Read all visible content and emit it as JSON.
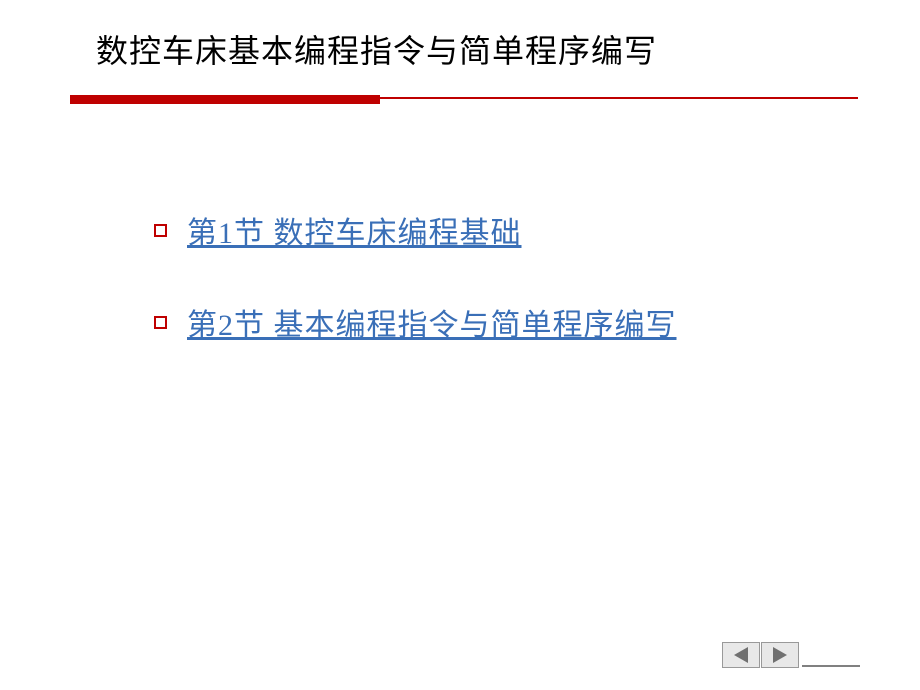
{
  "slide": {
    "title": "数控车床基本编程指令与简单程序编写",
    "title_color": "#000000",
    "title_fontsize": 32,
    "underline": {
      "red_bar_color": "#bf0000",
      "red_bar_width": 310,
      "red_bar_height": 9,
      "thin_line_width": 480,
      "thin_line_height": 2
    },
    "items": [
      {
        "text": "第1节 数控车床编程基础",
        "link_color": "#3a6fb7",
        "bullet_color": "#bf0000"
      },
      {
        "text": "第2节 基本编程指令与简单程序编写",
        "link_color": "#3a6fb7",
        "bullet_color": "#bf0000"
      }
    ],
    "background_color": "#ffffff",
    "nav": {
      "button_bg": "#e8e8e8",
      "button_border": "#999999",
      "arrow_color": "#707070",
      "line_color": "#808080"
    }
  }
}
